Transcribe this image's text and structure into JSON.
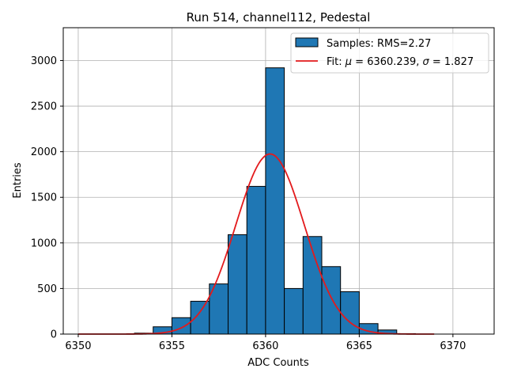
{
  "chart_data": {
    "type": "bar",
    "title": "Run 514, channel112, Pedestal",
    "xlabel": "ADC Counts",
    "ylabel": "Entries",
    "xlim": [
      6349.2,
      6372.2
    ],
    "ylim": [
      0,
      3360
    ],
    "xticks": [
      6350,
      6355,
      6360,
      6365,
      6370
    ],
    "yticks": [
      0,
      500,
      1000,
      1500,
      2000,
      2500,
      3000
    ],
    "grid": true,
    "legend_position": "top-right",
    "histogram": {
      "name": "Samples: RMS=2.27",
      "bin_width": 1,
      "bin_left_edges": [
        6353,
        6354,
        6355,
        6356,
        6357,
        6358,
        6359,
        6360,
        6361,
        6362,
        6363,
        6364,
        6365,
        6366,
        6367
      ],
      "counts": [
        10,
        80,
        180,
        360,
        550,
        1090,
        1620,
        2920,
        500,
        1070,
        740,
        465,
        115,
        45,
        5
      ],
      "color": "#1f77b4",
      "edgecolor": "#000000"
    },
    "fit": {
      "name_prefix": "Fit: ",
      "name_mu": "μ",
      "name_mu_value": " = 6360.239, ",
      "name_sigma": "σ",
      "name_sigma_value": " = 1.827",
      "mu": 6360.239,
      "sigma": 1.827,
      "amplitude": 1975,
      "x_range": [
        6350,
        6369
      ],
      "color": "#e31a1c"
    }
  }
}
